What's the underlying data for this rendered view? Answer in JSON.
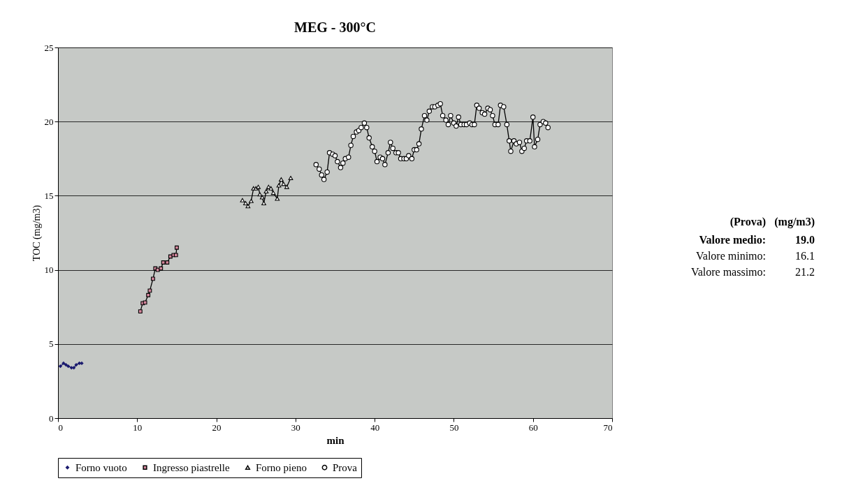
{
  "chart_data": {
    "type": "line",
    "title": "MEG - 300°C",
    "xlabel": "min",
    "ylabel": "TOC (mg/m3)",
    "xlim": [
      0,
      70
    ],
    "xticks": [
      0,
      10,
      20,
      30,
      40,
      50,
      60,
      70
    ],
    "ylim": [
      0,
      25
    ],
    "yticks": [
      0,
      5,
      10,
      15,
      20,
      25
    ],
    "grid": "y",
    "legend": "bottom",
    "series": [
      {
        "name": "Forno vuoto",
        "color": "#1a1a6e",
        "marker": "diamond",
        "x": [
          0.3,
          0.7,
          1.0,
          1.3,
          1.7,
          2.0,
          2.3,
          2.7,
          3.0
        ],
        "values": [
          3.5,
          3.7,
          3.6,
          3.5,
          3.4,
          3.4,
          3.6,
          3.7,
          3.7
        ]
      },
      {
        "name": "Ingresso piastrelle",
        "color": "#d4869c",
        "marker": "square",
        "x": [
          10.4,
          10.7,
          11.0,
          11.4,
          11.6,
          12.0,
          12.3,
          12.6,
          13.0,
          13.3,
          13.8,
          14.2,
          14.6,
          14.9,
          15.0
        ],
        "values": [
          7.2,
          7.75,
          7.8,
          8.3,
          8.6,
          9.4,
          10.1,
          10.0,
          10.1,
          10.5,
          10.5,
          10.9,
          11.0,
          11.0,
          11.5
        ]
      },
      {
        "name": "Forno pieno",
        "color": "#000000",
        "marker": "triangle",
        "x": [
          23.3,
          23.7,
          24.0,
          24.4,
          24.7,
          25.0,
          25.3,
          25.5,
          25.8,
          26.0,
          26.3,
          26.6,
          26.9,
          27.2,
          27.7,
          27.9,
          28.2,
          28.5,
          28.9,
          29.4
        ],
        "values": [
          14.7,
          14.5,
          14.3,
          14.65,
          15.5,
          15.5,
          15.6,
          15.1,
          14.9,
          14.5,
          15.3,
          15.6,
          15.5,
          15.2,
          14.8,
          15.7,
          16.1,
          15.8,
          15.6,
          16.2
        ]
      },
      {
        "name": "Prova",
        "color": "#000000",
        "marker": "circle",
        "x": [
          32.6,
          33.0,
          33.3,
          33.6,
          34.0,
          34.3,
          34.7,
          35.0,
          35.3,
          35.7,
          36.0,
          36.3,
          36.7,
          37.0,
          37.3,
          37.7,
          38.0,
          38.3,
          38.7,
          39.0,
          39.3,
          39.7,
          40.0,
          40.3,
          40.7,
          41.0,
          41.3,
          41.7,
          42.0,
          42.3,
          42.7,
          43.0,
          43.3,
          43.7,
          44.0,
          44.3,
          44.7,
          45.0,
          45.3,
          45.6,
          45.9,
          46.3,
          46.6,
          46.9,
          47.3,
          47.6,
          48.0,
          48.3,
          48.6,
          49.0,
          49.3,
          49.6,
          50.0,
          50.3,
          50.6,
          50.9,
          51.3,
          51.6,
          52.0,
          52.3,
          52.6,
          52.9,
          53.2,
          53.6,
          53.9,
          54.3,
          54.6,
          54.9,
          55.2,
          55.6,
          55.9,
          56.3,
          56.7,
          57.0,
          57.2,
          57.6,
          57.9,
          58.3,
          58.6,
          58.9,
          59.2,
          59.6,
          60.0,
          60.2,
          60.6,
          60.9,
          61.3,
          61.6,
          61.9
        ],
        "values": [
          17.1,
          16.8,
          16.4,
          16.1,
          16.6,
          17.9,
          17.8,
          17.7,
          17.3,
          16.9,
          17.2,
          17.5,
          17.6,
          18.4,
          19.0,
          19.3,
          19.4,
          19.6,
          19.9,
          19.6,
          18.9,
          18.3,
          18.0,
          17.3,
          17.6,
          17.5,
          17.1,
          17.9,
          18.6,
          18.2,
          17.9,
          17.9,
          17.5,
          17.5,
          17.5,
          17.7,
          17.5,
          18.1,
          18.1,
          18.5,
          19.5,
          20.4,
          20.1,
          20.7,
          21.0,
          21.0,
          21.1,
          21.2,
          20.4,
          20.1,
          19.8,
          20.4,
          19.9,
          19.7,
          20.3,
          19.8,
          19.8,
          19.8,
          19.9,
          19.8,
          19.8,
          21.1,
          20.9,
          20.6,
          20.5,
          20.9,
          20.8,
          20.4,
          19.8,
          19.8,
          21.1,
          21.0,
          19.8,
          18.7,
          18.0,
          18.7,
          18.5,
          18.6,
          18.0,
          18.2,
          18.7,
          18.7,
          20.3,
          18.3,
          18.8,
          19.8,
          20.0,
          19.9,
          19.6
        ]
      }
    ],
    "annotations": [
      "(Prova)",
      "(mg/m3)",
      "Valore medio:",
      "19.0",
      "Valore minimo:",
      "16.1",
      "Valore massimo:",
      "21.2"
    ]
  }
}
